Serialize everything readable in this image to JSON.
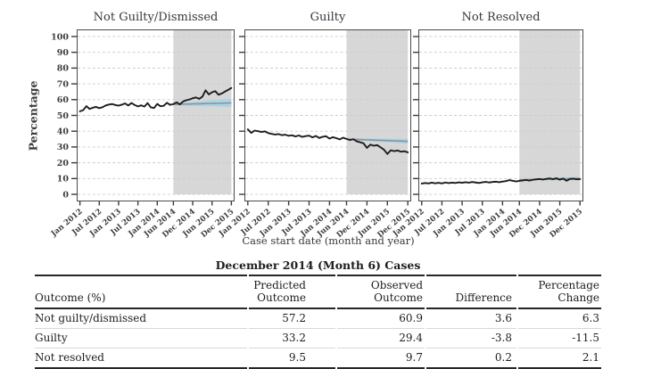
{
  "figure": {
    "y_axis_title": "Percentage",
    "x_axis_title": "Case start date (month and year)",
    "y_ticks": [
      0,
      10,
      20,
      30,
      40,
      50,
      60,
      70,
      80,
      90,
      100
    ],
    "x_ticks": [
      {
        "month": 0,
        "label": "Jan 2012"
      },
      {
        "month": 6,
        "label": "Jul 2012"
      },
      {
        "month": 12,
        "label": "Jan 2013"
      },
      {
        "month": 18,
        "label": "Jul 2013"
      },
      {
        "month": 24,
        "label": "Jan 2014"
      },
      {
        "month": 29,
        "label": "Jun 2014"
      },
      {
        "month": 35,
        "label": "Dec 2014"
      },
      {
        "month": 41,
        "label": "Jun 2015"
      },
      {
        "month": 47,
        "label": "Dec 2015"
      }
    ],
    "xlim": [
      -1,
      48
    ],
    "ylim": [
      -4.5,
      104.5
    ],
    "forecast_window": {
      "start_month": 29,
      "end_month": 47,
      "start_label": "Jun 2014",
      "end_label": "Dec 2015"
    },
    "colors": {
      "forecast_shade": "#d7d7d7",
      "projection_band": "#a8d4e6",
      "projection_line": "#8d9499",
      "data_line": "#1d1d1d",
      "gridline": "#cbcbcb",
      "panel_border": "#4a4a4a"
    }
  },
  "chart_data": [
    {
      "type": "line",
      "title": "Not Guilty/Dismissed",
      "x_unit": "months, Jan 2012 - Dec 2015",
      "show_y_tick_labels": true,
      "values": [
        52.6,
        53.3,
        55.9,
        54.1,
        54.9,
        55.4,
        54.6,
        55.2,
        56.3,
        56.9,
        57.2,
        56.6,
        56.2,
        56.8,
        57.6,
        56.3,
        57.9,
        56.6,
        55.7,
        56.4,
        55.6,
        57.8,
        55.1,
        54.7,
        57.3,
        55.8,
        56.1,
        58.0,
        56.7,
        57.2,
        58.3,
        57.0,
        58.8,
        59.6,
        60.1,
        60.9,
        61.4,
        60.5,
        61.9,
        65.9,
        63.3,
        64.7,
        65.4,
        63.1,
        63.9,
        65.1,
        66.2,
        67.4
      ],
      "projection": {
        "start_month": 29,
        "center_start": 57.0,
        "center_end": 57.9,
        "halfwidth_start": 0.5,
        "halfwidth_end": 2.6
      }
    },
    {
      "type": "line",
      "title": "Guilty",
      "x_unit": "months, Jan 2012 - Dec 2015",
      "show_y_tick_labels": false,
      "values": [
        41.2,
        38.9,
        40.4,
        40.0,
        39.5,
        39.9,
        38.8,
        38.3,
        37.9,
        38.2,
        37.5,
        37.8,
        37.1,
        37.4,
        36.7,
        37.3,
        36.4,
        36.9,
        37.2,
        36.1,
        37.0,
        35.7,
        36.5,
        36.8,
        35.3,
        36.2,
        35.6,
        34.8,
        35.9,
        35.1,
        34.4,
        34.9,
        33.6,
        33.0,
        32.3,
        29.4,
        31.5,
        30.8,
        31.2,
        29.8,
        28.3,
        25.6,
        27.9,
        27.4,
        27.8,
        27.0,
        27.3,
        26.6
      ],
      "projection": {
        "start_month": 29,
        "center_start": 35.0,
        "center_end": 33.6,
        "halfwidth_start": 0.5,
        "halfwidth_end": 1.5
      }
    },
    {
      "type": "line",
      "title": "Not Resolved",
      "x_unit": "months, Jan 2012 - Dec 2015",
      "show_y_tick_labels": false,
      "values": [
        6.8,
        7.2,
        6.9,
        7.4,
        7.0,
        7.3,
        6.9,
        7.5,
        7.1,
        7.4,
        7.2,
        7.6,
        7.3,
        7.7,
        7.4,
        7.8,
        7.5,
        7.2,
        7.6,
        7.9,
        7.5,
        7.8,
        8.0,
        7.7,
        8.1,
        8.4,
        9.0,
        8.6,
        8.2,
        8.5,
        8.8,
        9.1,
        8.7,
        9.2,
        9.5,
        9.7,
        9.4,
        9.8,
        10.1,
        9.6,
        10.2,
        9.3,
        10.0,
        8.6,
        9.7,
        9.9,
        9.5,
        9.6
      ],
      "projection": {
        "start_month": 29,
        "center_start": 9.2,
        "center_end": 10.1,
        "halfwidth_start": 0.3,
        "halfwidth_end": 1.0
      }
    }
  ],
  "table": {
    "title": "December 2014 (Month 6) Cases",
    "columns": [
      "Outcome (%)",
      "Predicted\nOutcome",
      "Observed\nOutcome",
      "Difference",
      "Percentage\nChange"
    ],
    "rows": [
      [
        "Not guilty/dismissed",
        "57.2",
        "60.9",
        "3.6",
        "6.3"
      ],
      [
        "Guilty",
        "33.2",
        "29.4",
        "-3.8",
        "-11.5"
      ],
      [
        "Not resolved",
        "9.5",
        "9.7",
        "0.2",
        "2.1"
      ]
    ]
  }
}
